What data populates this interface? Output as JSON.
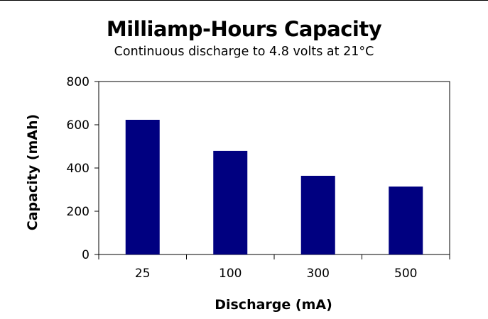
{
  "chart_data": {
    "type": "bar",
    "title": "Milliamp-Hours Capacity",
    "subtitle": "Continuous discharge to 4.8 volts at 21°C",
    "xlabel": "Discharge (mA)",
    "ylabel": "Capacity (mAh)",
    "categories": [
      "25",
      "100",
      "300",
      "500"
    ],
    "values": [
      623,
      479,
      364,
      314
    ],
    "ylim": [
      0,
      800
    ],
    "yticks": [
      0,
      200,
      400,
      600,
      800
    ],
    "grid": false,
    "legend": "none",
    "colors": {
      "bar": "#000080",
      "axis": "#000000",
      "background": "#ffffff"
    }
  }
}
